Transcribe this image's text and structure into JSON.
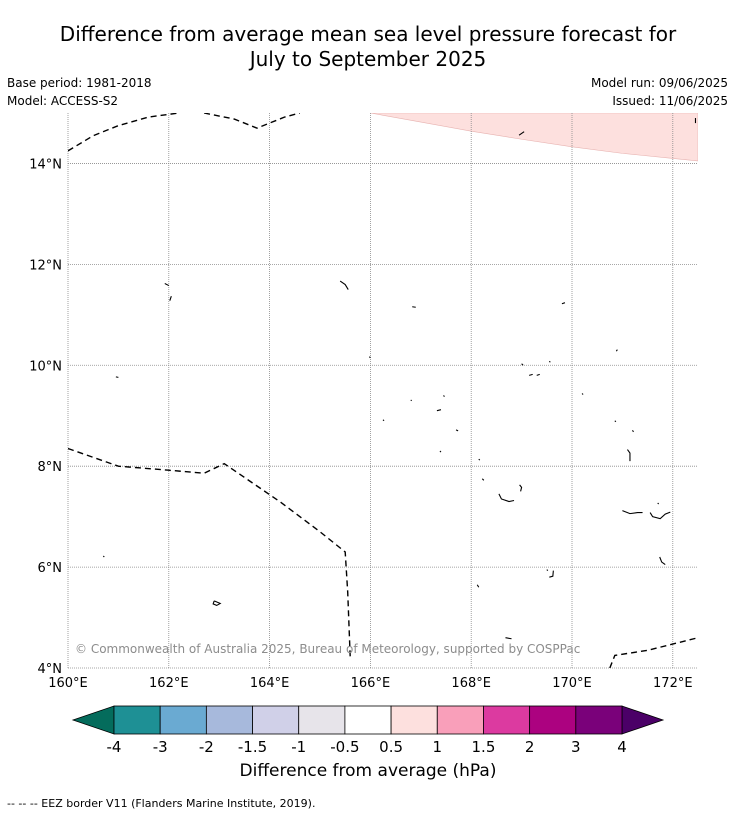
{
  "title_line1": "Difference from average mean sea level pressure forecast for",
  "title_line2": "July to September 2025",
  "base_period": "Base period: 1981-2018",
  "model": "Model: ACCESS-S2",
  "model_run": "Model run: 09/06/2025",
  "issued": "Issued: 11/06/2025",
  "copyright": "© Commonwealth of Australia 2025, Bureau of Meteorology, supported by COSPPac",
  "map": {
    "lon_range": [
      160,
      172.5
    ],
    "lat_range": [
      4,
      15
    ],
    "lon_ticks": [
      {
        "value": 160,
        "label": "160°E"
      },
      {
        "value": 162,
        "label": "162°E"
      },
      {
        "value": 164,
        "label": "164°E"
      },
      {
        "value": 166,
        "label": "166°E"
      },
      {
        "value": 168,
        "label": "168°E"
      },
      {
        "value": 170,
        "label": "170°E"
      },
      {
        "value": 172,
        "label": "172°E"
      }
    ],
    "lat_ticks": [
      {
        "value": 4,
        "label": "4°N"
      },
      {
        "value": 6,
        "label": "6°N"
      },
      {
        "value": 8,
        "label": "8°N"
      },
      {
        "value": 10,
        "label": "10°N"
      },
      {
        "value": 12,
        "label": "12°N"
      },
      {
        "value": 14,
        "label": "14°N"
      }
    ],
    "shaded_region": {
      "category": "0.5 to 1",
      "color": "#fde0de",
      "boundary": [
        [
          166,
          15
        ],
        [
          167,
          14.82
        ],
        [
          168,
          14.64
        ],
        [
          169,
          14.48
        ],
        [
          170,
          14.33
        ],
        [
          171,
          14.2
        ],
        [
          172,
          14.1
        ],
        [
          172.5,
          14.05
        ]
      ]
    },
    "eez_borders": [
      [
        [
          160,
          14.25
        ],
        [
          160.5,
          14.55
        ],
        [
          161,
          14.75
        ],
        [
          161.6,
          14.92
        ],
        [
          162.2,
          15
        ]
      ],
      [
        [
          162.7,
          15
        ],
        [
          163.3,
          14.88
        ],
        [
          163.75,
          14.7
        ],
        [
          164.3,
          14.92
        ],
        [
          164.6,
          15
        ]
      ],
      [
        [
          160,
          8.35
        ],
        [
          161,
          8
        ],
        [
          162,
          7.92
        ],
        [
          162.7,
          7.86
        ],
        [
          163.1,
          8.05
        ],
        [
          164.2,
          7.3
        ],
        [
          165,
          6.7
        ],
        [
          165.5,
          6.3
        ],
        [
          165.55,
          5.5
        ],
        [
          165.6,
          4.2
        ]
      ],
      [
        [
          170.75,
          4
        ],
        [
          170.85,
          4.25
        ],
        [
          171.5,
          4.35
        ],
        [
          172.5,
          4.6
        ]
      ]
    ],
    "islands": [
      [
        [
          161.92,
          11.62
        ],
        [
          162.0,
          11.58
        ]
      ],
      [
        [
          162.05,
          11.37
        ],
        [
          162.02,
          11.28
        ]
      ],
      [
        [
          160.95,
          9.77
        ],
        [
          161.0,
          9.76
        ]
      ],
      [
        [
          165.4,
          11.67
        ],
        [
          165.5,
          11.6
        ],
        [
          165.56,
          11.5
        ]
      ],
      [
        [
          166.83,
          11.16
        ],
        [
          166.9,
          11.15
        ]
      ],
      [
        [
          169.8,
          11.22
        ],
        [
          169.86,
          11.24
        ]
      ],
      [
        [
          165.98,
          10.17
        ],
        [
          166.0,
          10.15
        ]
      ],
      [
        [
          169.0,
          10.03
        ],
        [
          169.03,
          10.0
        ]
      ],
      [
        [
          169.55,
          10.08
        ],
        [
          169.57,
          10.06
        ]
      ],
      [
        [
          170.88,
          10.28
        ],
        [
          170.9,
          10.31
        ]
      ],
      [
        [
          169.15,
          9.8
        ],
        [
          169.22,
          9.82
        ]
      ],
      [
        [
          169.3,
          9.8
        ],
        [
          169.36,
          9.82
        ]
      ],
      [
        [
          170.2,
          9.44
        ],
        [
          170.22,
          9.42
        ]
      ],
      [
        [
          167.45,
          9.4
        ],
        [
          167.47,
          9.38
        ]
      ],
      [
        [
          166.8,
          9.31
        ],
        [
          166.82,
          9.3
        ]
      ],
      [
        [
          167.32,
          9.1
        ],
        [
          167.4,
          9.12
        ]
      ],
      [
        [
          166.25,
          8.92
        ],
        [
          166.27,
          8.9
        ]
      ],
      [
        [
          170.85,
          8.9
        ],
        [
          170.87,
          8.88
        ]
      ],
      [
        [
          171.2,
          8.71
        ],
        [
          171.22,
          8.68
        ]
      ],
      [
        [
          167.7,
          8.72
        ],
        [
          167.74,
          8.7
        ]
      ],
      [
        [
          167.38,
          8.3
        ],
        [
          167.4,
          8.28
        ]
      ],
      [
        [
          171.1,
          8.33
        ],
        [
          171.15,
          8.26
        ],
        [
          171.15,
          8.1
        ]
      ],
      [
        [
          168.15,
          8.14
        ],
        [
          168.17,
          8.12
        ]
      ],
      [
        [
          168.22,
          7.75
        ],
        [
          168.25,
          7.72
        ]
      ],
      [
        [
          168.55,
          7.45
        ],
        [
          168.6,
          7.35
        ],
        [
          168.75,
          7.3
        ],
        [
          168.85,
          7.32
        ]
      ],
      [
        [
          168.98,
          7.5
        ],
        [
          169.0,
          7.58
        ],
        [
          168.96,
          7.63
        ]
      ],
      [
        [
          171.0,
          7.12
        ],
        [
          171.15,
          7.06
        ],
        [
          171.3,
          7.08
        ],
        [
          171.4,
          7.08
        ]
      ],
      [
        [
          171.55,
          7.08
        ],
        [
          171.6,
          7.0
        ],
        [
          171.75,
          6.96
        ],
        [
          171.85,
          7.05
        ],
        [
          171.95,
          7.09
        ]
      ],
      [
        [
          171.7,
          7.27
        ],
        [
          171.72,
          7.25
        ]
      ],
      [
        [
          171.74,
          6.2
        ],
        [
          171.78,
          6.1
        ],
        [
          171.85,
          6.05
        ]
      ],
      [
        [
          169.5,
          5.95
        ],
        [
          169.52,
          5.93
        ]
      ],
      [
        [
          169.63,
          5.93
        ],
        [
          169.62,
          5.82
        ],
        [
          169.55,
          5.8
        ]
      ],
      [
        [
          168.12,
          5.65
        ],
        [
          168.15,
          5.6
        ]
      ],
      [
        [
          160.7,
          6.22
        ],
        [
          160.72,
          6.2
        ]
      ],
      [
        [
          162.9,
          5.33
        ],
        [
          162.97,
          5.3
        ],
        [
          163.02,
          5.28
        ],
        [
          162.95,
          5.24
        ],
        [
          162.88,
          5.27
        ],
        [
          162.9,
          5.33
        ]
      ],
      [
        [
          168.68,
          4.6
        ],
        [
          168.8,
          4.58
        ]
      ],
      [
        [
          168.95,
          14.56
        ],
        [
          169.05,
          14.63
        ]
      ],
      [
        [
          172.45,
          14.8
        ],
        [
          172.45,
          14.9
        ]
      ]
    ]
  },
  "colorbar": {
    "title": "Difference from average (hPa)",
    "boundaries": [
      {
        "value": -4,
        "label": "-4"
      },
      {
        "value": -3,
        "label": "-3"
      },
      {
        "value": -2,
        "label": "-2"
      },
      {
        "value": -1.5,
        "label": "-1.5"
      },
      {
        "value": -1,
        "label": "-1"
      },
      {
        "value": -0.5,
        "label": "-0.5"
      },
      {
        "value": 0.5,
        "label": "0.5"
      },
      {
        "value": 1,
        "label": "1"
      },
      {
        "value": 1.5,
        "label": "1.5"
      },
      {
        "value": 2,
        "label": "2"
      },
      {
        "value": 3,
        "label": "3"
      },
      {
        "value": 4,
        "label": "4"
      }
    ],
    "bin_colors": [
      "#1e9095",
      "#6aaad2",
      "#a7b9dc",
      "#d0d0e8",
      "#e7e4ea",
      "#ffffff",
      "#fde0de",
      "#f99fba",
      "#dc3aa0",
      "#ac0280",
      "#7a017a"
    ],
    "under_color": "#046c5c",
    "over_color": "#4b0067"
  },
  "footer_note": "--  --  -- EEZ border V11 (Flanders Marine Institute, 2019)."
}
